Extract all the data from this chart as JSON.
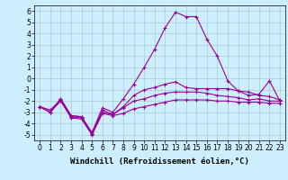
{
  "x": [
    0,
    1,
    2,
    3,
    4,
    5,
    6,
    7,
    8,
    9,
    10,
    11,
    12,
    13,
    14,
    15,
    16,
    17,
    18,
    19,
    20,
    21,
    22,
    23
  ],
  "line1": [
    -2.5,
    -3.0,
    -1.8,
    -3.3,
    -3.4,
    -4.8,
    -2.6,
    -3.0,
    -1.8,
    -0.5,
    1.0,
    2.6,
    4.5,
    5.9,
    5.5,
    5.5,
    3.5,
    2.0,
    -0.2,
    -1.1,
    -1.5,
    -1.4,
    -0.2,
    -2.0
  ],
  "line2": [
    -2.5,
    -3.0,
    -1.8,
    -3.3,
    -3.4,
    -4.9,
    -2.8,
    -3.2,
    -2.5,
    -1.5,
    -1.0,
    -0.8,
    -0.5,
    -0.3,
    -0.8,
    -0.9,
    -0.9,
    -0.9,
    -0.9,
    -1.1,
    -1.2,
    -1.5,
    -1.6,
    -1.9
  ],
  "line3": [
    -2.5,
    -2.8,
    -1.9,
    -3.4,
    -3.5,
    -4.9,
    -3.0,
    -3.2,
    -2.6,
    -2.0,
    -1.8,
    -1.5,
    -1.3,
    -1.2,
    -1.2,
    -1.2,
    -1.3,
    -1.5,
    -1.6,
    -1.7,
    -1.9,
    -1.8,
    -2.0,
    -2.0
  ],
  "line4": [
    -2.5,
    -3.0,
    -2.0,
    -3.5,
    -3.6,
    -5.0,
    -3.1,
    -3.3,
    -3.1,
    -2.7,
    -2.5,
    -2.3,
    -2.1,
    -1.9,
    -1.9,
    -1.9,
    -1.9,
    -2.0,
    -2.0,
    -2.1,
    -2.1,
    -2.1,
    -2.2,
    -2.2
  ],
  "color": "#990099",
  "background": "#cceeff",
  "grid_color": "#aacccc",
  "ylim": [
    -5.5,
    6.5
  ],
  "xlim": [
    -0.5,
    23.5
  ],
  "yticks": [
    -5,
    -4,
    -3,
    -2,
    -1,
    0,
    1,
    2,
    3,
    4,
    5,
    6
  ],
  "xticks": [
    0,
    1,
    2,
    3,
    4,
    5,
    6,
    7,
    8,
    9,
    10,
    11,
    12,
    13,
    14,
    15,
    16,
    17,
    18,
    19,
    20,
    21,
    22,
    23
  ],
  "xlabel": "Windchill (Refroidissement éolien,°C)",
  "tick_fontsize": 5.5,
  "label_fontsize": 6.5,
  "marker": "+"
}
